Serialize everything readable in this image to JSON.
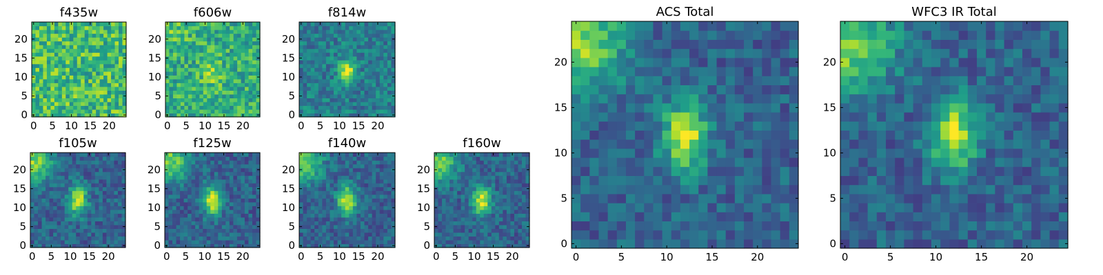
{
  "chart_data": [
    {
      "type": "heatmap",
      "title": "f435w",
      "grid_size": 25,
      "xticks": [
        "0",
        "5",
        "10",
        "15",
        "20"
      ],
      "yticks": [
        "0",
        "5",
        "10",
        "15",
        "20"
      ],
      "colormap": "viridis",
      "blob": "none",
      "grid": false,
      "legend": "none"
    },
    {
      "type": "heatmap",
      "title": "f606w",
      "grid_size": 25,
      "xticks": [
        "0",
        "5",
        "10",
        "15",
        "20"
      ],
      "yticks": [
        "0",
        "5",
        "10",
        "15",
        "20"
      ],
      "colormap": "viridis",
      "blob": "faint-center",
      "grid": false,
      "legend": "none"
    },
    {
      "type": "heatmap",
      "title": "f814w",
      "grid_size": 25,
      "xticks": [
        "0",
        "5",
        "10",
        "15",
        "20"
      ],
      "yticks": [
        "0",
        "5",
        "10",
        "15",
        "20"
      ],
      "colormap": "viridis",
      "blob": "center",
      "grid": false,
      "legend": "none"
    },
    {
      "type": "heatmap",
      "title": "f105w",
      "grid_size": 25,
      "xticks": [
        "0",
        "5",
        "10",
        "15",
        "20"
      ],
      "yticks": [
        "0",
        "5",
        "10",
        "15",
        "20"
      ],
      "colormap": "viridis",
      "blob": "center-and-top-left",
      "grid": false,
      "legend": "none"
    },
    {
      "type": "heatmap",
      "title": "f125w",
      "grid_size": 25,
      "xticks": [
        "0",
        "5",
        "10",
        "15",
        "20"
      ],
      "yticks": [
        "0",
        "5",
        "10",
        "15",
        "20"
      ],
      "colormap": "viridis",
      "blob": "center-and-top-left",
      "grid": false,
      "legend": "none"
    },
    {
      "type": "heatmap",
      "title": "f140w",
      "grid_size": 25,
      "xticks": [
        "0",
        "5",
        "10",
        "15",
        "20"
      ],
      "yticks": [
        "0",
        "5",
        "10",
        "15",
        "20"
      ],
      "colormap": "viridis",
      "blob": "center-and-top-left",
      "grid": false,
      "legend": "none"
    },
    {
      "type": "heatmap",
      "title": "f160w",
      "grid_size": 25,
      "xticks": [
        "0",
        "5",
        "10",
        "15",
        "20"
      ],
      "yticks": [
        "0",
        "5",
        "10",
        "15",
        "20"
      ],
      "colormap": "viridis",
      "blob": "center-and-top-left",
      "grid": false,
      "legend": "none"
    },
    {
      "type": "heatmap",
      "title": "ACS Total",
      "grid_size": 25,
      "xticks": [
        "0",
        "5",
        "10",
        "15",
        "20"
      ],
      "yticks": [
        "0",
        "5",
        "10",
        "15",
        "20"
      ],
      "colormap": "viridis",
      "blob": "center-and-top-left",
      "grid": false,
      "legend": "none"
    },
    {
      "type": "heatmap",
      "title": "WFC3 IR Total",
      "grid_size": 25,
      "xticks": [
        "0",
        "5",
        "10",
        "15",
        "20"
      ],
      "yticks": [
        "0",
        "5",
        "10",
        "15",
        "20"
      ],
      "colormap": "viridis",
      "blob": "center-and-top-left",
      "grid": false,
      "legend": "none"
    }
  ]
}
